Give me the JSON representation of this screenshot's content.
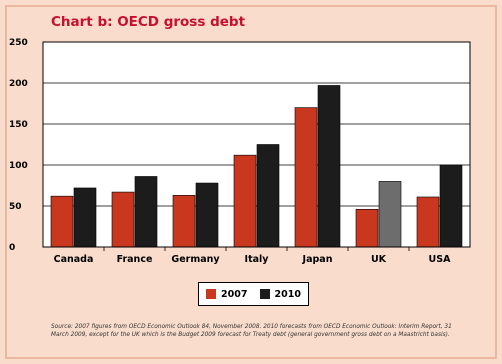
{
  "chart_data": {
    "type": "bar",
    "title": "Chart b: OECD gross debt",
    "categories": [
      "Canada",
      "France",
      "Germany",
      "Italy",
      "Japan",
      "UK",
      "USA"
    ],
    "series": [
      {
        "name": "2007",
        "values": [
          62,
          67,
          63,
          112,
          170,
          46,
          61
        ],
        "color": "#c8371e"
      },
      {
        "name": "2010",
        "values": [
          72,
          86,
          78,
          125,
          197,
          80,
          100
        ],
        "color": "#1c1c1c"
      }
    ],
    "uk_2010_color": "#6d6d6d",
    "y_ticks": [
      0,
      50,
      100,
      150,
      200,
      250
    ],
    "ylim": [
      0,
      250
    ],
    "grid": true,
    "legend_position": "bottom-center",
    "source": "Source: 2007 figures from OECD Economic Outlook 84, November 2008. 2010 forecasts from OECD Economic Outlook: Interim Report, 31 March 2009, except for the UK which is the Budget 2009 forecast for Treaty debt (general government gross debt on a Maastricht basis)."
  }
}
